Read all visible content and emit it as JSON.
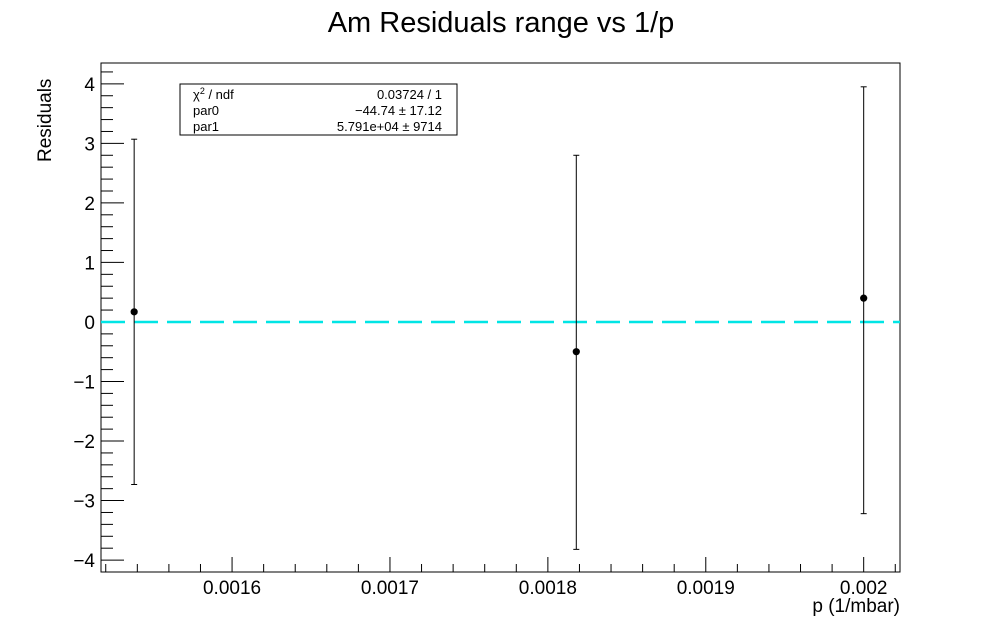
{
  "chart_data": {
    "type": "scatter",
    "title": "Am Residuals range vs 1/p",
    "xlabel": "p (1/mbar)",
    "ylabel": "Residuals",
    "xlim": [
      0.001517,
      0.002023
    ],
    "ylim": [
      -4.2,
      4.35
    ],
    "grid": false,
    "x_ticks": [
      0.0016,
      0.0017,
      0.0018,
      0.0019,
      0.002
    ],
    "x_tick_labels": [
      "0.0016",
      "0.0017",
      "0.0018",
      "0.0019",
      "0.002"
    ],
    "y_ticks": [
      -4,
      -3,
      -2,
      -1,
      0,
      1,
      2,
      3,
      4
    ],
    "y_tick_labels": [
      "−4",
      "−3",
      "−2",
      "−1",
      "0",
      "1",
      "2",
      "3",
      "4"
    ],
    "points": [
      {
        "x": 0.001538,
        "y": 0.17,
        "err_low": -2.73,
        "err_high": 3.07
      },
      {
        "x": 0.001818,
        "y": -0.5,
        "err_low": -3.82,
        "err_high": 2.8
      },
      {
        "x": 0.002,
        "y": 0.4,
        "err_low": -3.22,
        "err_high": 3.95
      }
    ],
    "reference_line": {
      "y": 0,
      "style": "dashed",
      "color": "#00e5e5"
    },
    "marker_color": "#000000",
    "stats_box": {
      "rows": [
        {
          "label_main": "χ",
          "label_sup": "2",
          "label_rest": " / ndf",
          "value": "0.03724 / 1"
        },
        {
          "label_main": "par0",
          "label_sup": "",
          "label_rest": "",
          "value": "−44.74 ± 17.12"
        },
        {
          "label_main": "par1",
          "label_sup": "",
          "label_rest": "",
          "value": "5.791e+04 ±  9714"
        }
      ]
    }
  }
}
